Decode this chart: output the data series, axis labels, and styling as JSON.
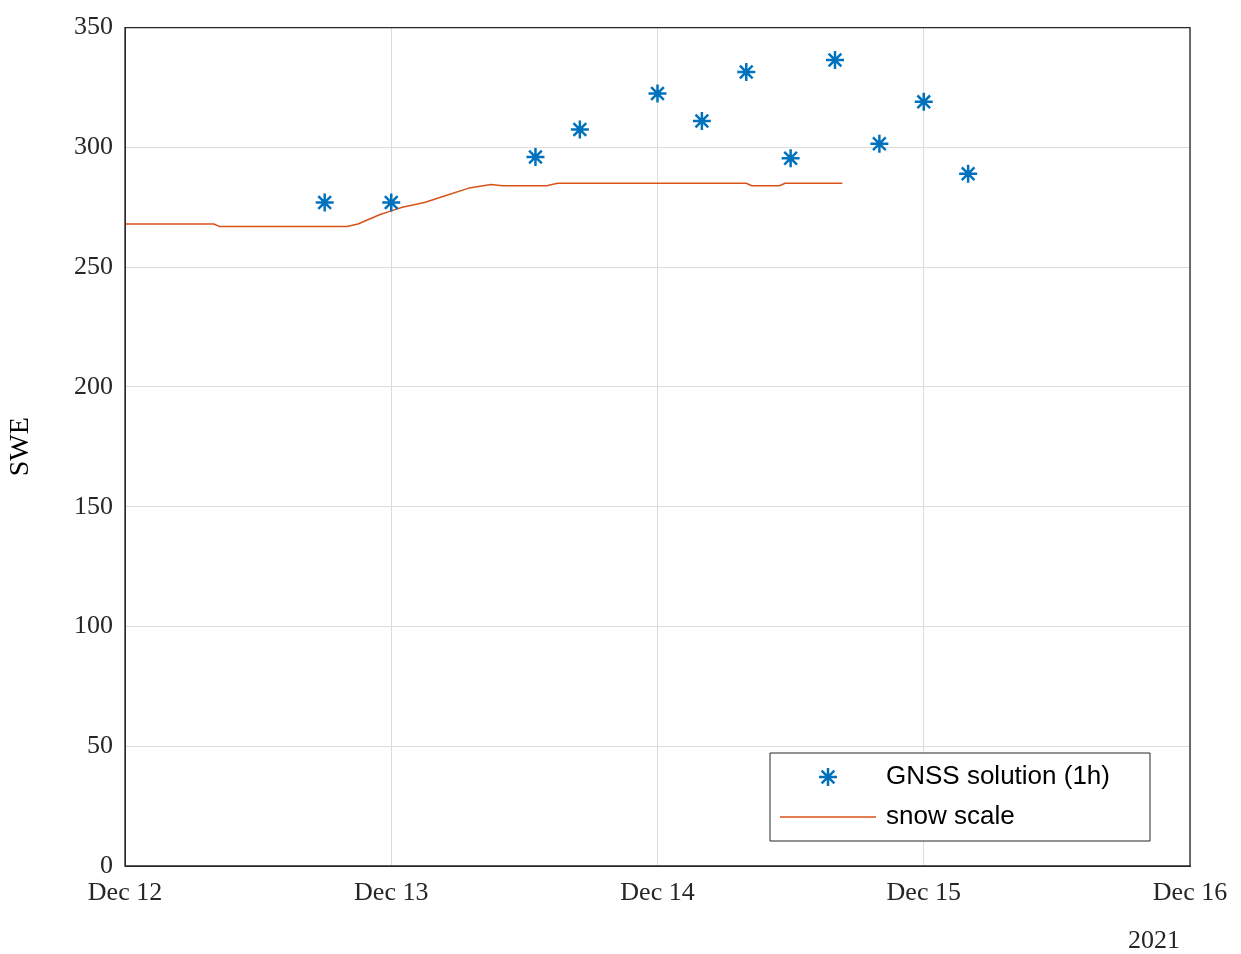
{
  "chart_data": {
    "type": "scatter",
    "ylabel": "SWE",
    "xlim": [
      "2021-12-12",
      "2021-12-16"
    ],
    "xticks": [
      {
        "value": "2021-12-12",
        "label": "Dec 12"
      },
      {
        "value": "2021-12-13",
        "label": "Dec 13"
      },
      {
        "value": "2021-12-14",
        "label": "Dec 14"
      },
      {
        "value": "2021-12-15",
        "label": "Dec 15"
      },
      {
        "value": "2021-12-16",
        "label": "Dec 16"
      }
    ],
    "ylim": [
      0,
      350
    ],
    "yticks": [
      0,
      50,
      100,
      150,
      200,
      250,
      300,
      350
    ],
    "grid": true,
    "legend": "bottom right",
    "annotations": [
      "2021"
    ],
    "series": [
      {
        "name": "GNSS solution (1h)",
        "marker": "cross",
        "color": "#0072bd",
        "x": [
          "2021-12-12T18:00",
          "2021-12-13T00:00",
          "2021-12-13T13:00",
          "2021-12-13T17:00",
          "2021-12-14T00:00",
          "2021-12-14T04:00",
          "2021-12-14T08:00",
          "2021-12-14T12:00",
          "2021-12-14T16:00",
          "2021-12-14T20:00",
          "2021-12-15T00:00",
          "2021-12-15T04:00"
        ],
        "values": [
          277,
          277,
          296,
          307.5,
          322.5,
          311,
          331.5,
          295.5,
          336.5,
          301.5,
          319,
          289
        ]
      },
      {
        "name": "snow scale",
        "type": "line",
        "marker": "none",
        "color": "#d95319",
        "x": [
          "2021-12-12T00:00",
          "2021-12-12T08:00",
          "2021-12-12T08:30",
          "2021-12-12T20:00",
          "2021-12-12T21:00",
          "2021-12-12T22:00",
          "2021-12-12T23:00",
          "2021-12-13T00:00",
          "2021-12-13T01:00",
          "2021-12-13T03:00",
          "2021-12-13T05:00",
          "2021-12-13T07:00",
          "2021-12-13T09:00",
          "2021-12-13T10:00",
          "2021-12-13T14:00",
          "2021-12-13T15:00",
          "2021-12-14T08:00",
          "2021-12-14T08:30",
          "2021-12-14T11:00",
          "2021-12-14T11:30",
          "2021-12-14T16:40"
        ],
        "values": [
          268,
          268,
          267,
          267,
          268,
          270,
          272,
          273.5,
          275,
          277,
          280,
          283,
          284.5,
          284,
          284,
          285,
          285,
          284,
          284,
          285,
          285
        ]
      }
    ]
  }
}
